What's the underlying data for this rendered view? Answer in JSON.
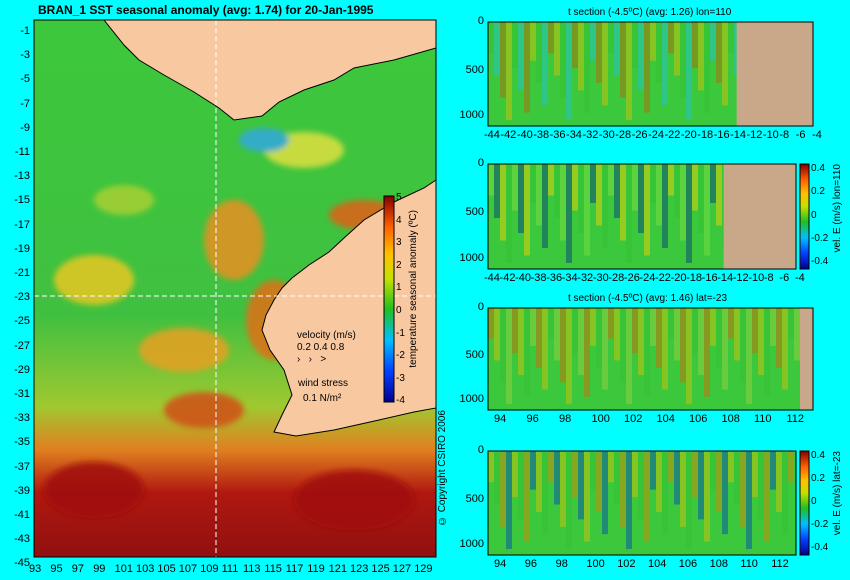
{
  "map": {
    "title": "BRAN_1  SST seasonal anomaly  (avg: 1.74)  for 20-Jan-1995",
    "lat_ticks": [
      "-1",
      "-3",
      "-5",
      "-7",
      "-9",
      "-11",
      "-13",
      "-15",
      "-17",
      "-19",
      "-21",
      "-23",
      "-25",
      "-27",
      "-29",
      "-31",
      "-33",
      "-35",
      "-37",
      "-39",
      "-41",
      "-43",
      "-45"
    ],
    "lon_ticks": [
      "93",
      "95",
      "97",
      "99",
      "101",
      "103",
      "105",
      "107",
      "109",
      "111",
      "113",
      "115",
      "117",
      "119",
      "121",
      "123",
      "125",
      "127",
      "129"
    ],
    "colorbar": {
      "label": "temperature seasonal anomaly (ºC)",
      "ticks": [
        "5",
        "4",
        "3",
        "2",
        "1",
        "0",
        "-1",
        "-2",
        "-3",
        "-4"
      ]
    },
    "velocity_legend": {
      "title": "velocity (m/s)",
      "values": "0.2 0.4 0.8"
    },
    "wind_legend": {
      "title": "wind stress",
      "value": "0.1 N/m²"
    },
    "copyright": "© Copyright CSIRO 2006",
    "crosshair": {
      "lon": 110,
      "lat": -23
    }
  },
  "sections": [
    {
      "title": "t section (-4.5ºC)  (avg: 1.26)  lon=110",
      "x_ticks": [
        "-44",
        "-42",
        "-40",
        "-38",
        "-36",
        "-34",
        "-32",
        "-30",
        "-28",
        "-26",
        "-24",
        "-22",
        "-20",
        "-18",
        "-16",
        "-14",
        "-12",
        "-10",
        "-8",
        "-6",
        "-4"
      ],
      "y_ticks": [
        "0",
        "500",
        "1000"
      ],
      "colorbar_label": "",
      "colorbar_ticks": []
    },
    {
      "title": "",
      "x_ticks": [
        "-44",
        "-42",
        "-40",
        "-38",
        "-36",
        "-34",
        "-32",
        "-30",
        "-28",
        "-26",
        "-24",
        "-22",
        "-20",
        "-18",
        "-16",
        "-14",
        "-12",
        "-10",
        "-8",
        "-6",
        "-4"
      ],
      "y_ticks": [
        "0",
        "500",
        "1000"
      ],
      "colorbar_label": "vel. E (m/s) lon=110",
      "colorbar_ticks": [
        "0.4",
        "0.2",
        "0",
        "-0.2",
        "-0.4"
      ]
    },
    {
      "title": "t section (-4.5ºC)  (avg: 1.46)  lat=-23",
      "x_ticks": [
        "94",
        "96",
        "98",
        "100",
        "102",
        "104",
        "106",
        "108",
        "110",
        "112"
      ],
      "y_ticks": [
        "0",
        "500",
        "1000"
      ],
      "colorbar_label": "",
      "colorbar_ticks": []
    },
    {
      "title": "",
      "x_ticks": [
        "94",
        "96",
        "98",
        "100",
        "102",
        "104",
        "106",
        "108",
        "110",
        "112"
      ],
      "y_ticks": [
        "0",
        "500",
        "1000"
      ],
      "colorbar_label": "vel. E (m/s) lat=-23",
      "colorbar_ticks": [
        "0.4",
        "0.2",
        "0",
        "-0.2",
        "-0.4"
      ]
    }
  ],
  "chart_data": [
    {
      "type": "heatmap",
      "title": "BRAN_1  SST seasonal anomaly  (avg: 1.74)  for 20-Jan-1995",
      "xlim": [
        93,
        130
      ],
      "ylim": [
        -45,
        0
      ],
      "zlim": [
        -4,
        5
      ],
      "colors": {
        "ocean_base": "#22c832",
        "land": "#f8c8a0",
        "background": "#00ffff"
      }
    },
    {
      "type": "heatmap",
      "title": "t section (-4.5ºC)  (avg: 1.26)  lon=110",
      "xlim": [
        -45,
        -3
      ],
      "ylim": [
        1050,
        0
      ]
    },
    {
      "type": "heatmap",
      "title": "",
      "xlim": [
        -45,
        -3
      ],
      "ylim": [
        1050,
        0
      ],
      "zlim": [
        -0.4,
        0.4
      ]
    },
    {
      "type": "heatmap",
      "title": "t section (-4.5ºC)  (avg: 1.46)  lat=-23",
      "xlim": [
        93,
        114
      ],
      "ylim": [
        1050,
        0
      ]
    },
    {
      "type": "heatmap",
      "title": "",
      "xlim": [
        93,
        114
      ],
      "ylim": [
        1050,
        0
      ],
      "zlim": [
        -0.4,
        0.4
      ]
    }
  ]
}
